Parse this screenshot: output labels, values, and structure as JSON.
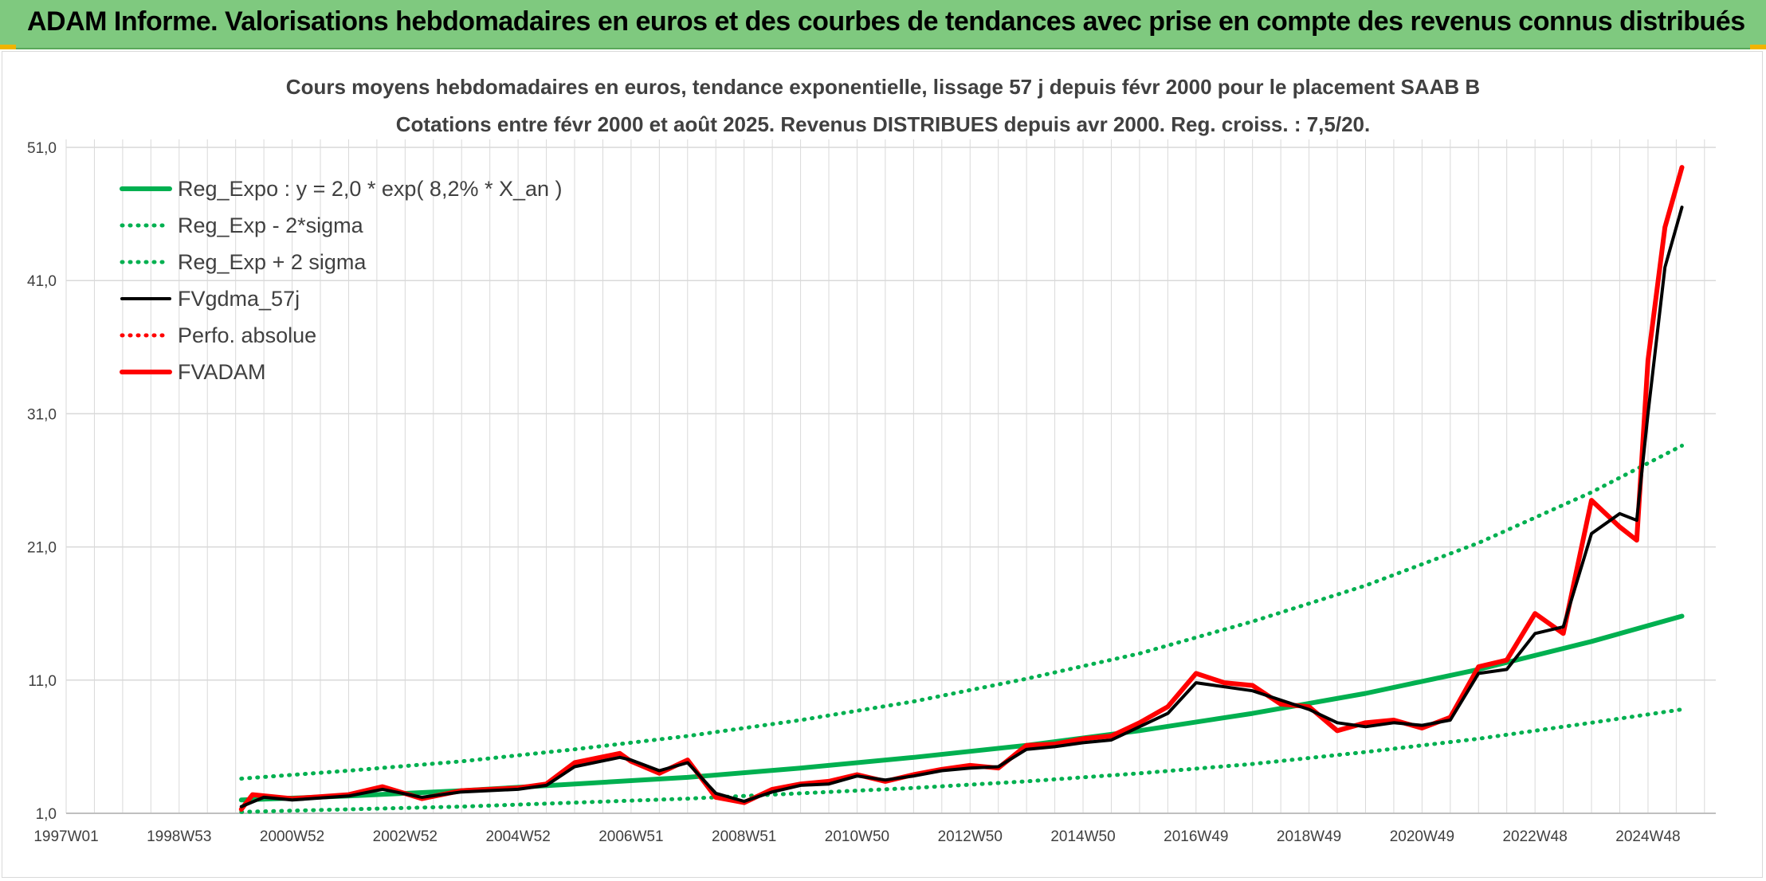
{
  "header": {
    "title": "ADAM Informe. Valorisations hebdomadaires en euros et des courbes de tendances avec prise en compte des revenus connus distribués"
  },
  "colors": {
    "header_bg": "#7fc97f",
    "regression": "#00b050",
    "smoothed": "#000000",
    "adam": "#ff0000",
    "grid": "#d9d9d9"
  },
  "chart_data": {
    "type": "line",
    "title": "Cours moyens hebdomadaires en euros, tendance exponentielle, lissage 57 j depuis févr 2000 pour le placement SAAB B",
    "subtitle": "Cotations entre févr 2000 et août 2025. Revenus DISTRIBUES depuis avr 2000. Reg. croiss. : 7,5/20.",
    "xlabel": "",
    "ylabel": "",
    "x_ticks": [
      "1997W01",
      "1998W53",
      "2000W52",
      "2002W52",
      "2004W52",
      "2006W51",
      "2008W51",
      "2010W50",
      "2012W50",
      "2014W50",
      "2016W49",
      "2018W49",
      "2020W49",
      "2022W48",
      "2024W48"
    ],
    "x_tick_years": [
      1997.0,
      1999.0,
      2001.0,
      2003.0,
      2005.0,
      2007.0,
      2009.0,
      2011.0,
      2013.0,
      2015.0,
      2017.0,
      2019.0,
      2021.0,
      2023.0,
      2025.0
    ],
    "xlim": [
      1997.0,
      2026.2
    ],
    "y_ticks": [
      "1,0",
      "11,0",
      "21,0",
      "31,0",
      "41,0",
      "51,0"
    ],
    "y_tick_values": [
      1,
      11,
      21,
      31,
      41,
      51
    ],
    "ylim": [
      1,
      51
    ],
    "grid": true,
    "legend_position": "top-left",
    "legend": [
      {
        "label": "Reg_Expo : y = 2,0 * exp( 8,2% *  X_an )",
        "color": "#00b050",
        "style": "solid",
        "width": 6
      },
      {
        "label": "Reg_Exp - 2*sigma",
        "color": "#00b050",
        "style": "dotted",
        "width": 4
      },
      {
        "label": "Reg_Exp + 2 sigma",
        "color": "#00b050",
        "style": "dotted",
        "width": 4
      },
      {
        "label": "FVgdma_57j",
        "color": "#000000",
        "style": "solid",
        "width": 4
      },
      {
        "label": "Perfo. absolue",
        "color": "#ff0000",
        "style": "dotted",
        "width": 3
      },
      {
        "label": "FVADAM",
        "color": "#ff0000",
        "style": "solid",
        "width": 6
      }
    ],
    "series": [
      {
        "name": "Reg_Expo : y = 2,0 * exp( 8,2% *  X_an )",
        "color": "#00b050",
        "style": "solid",
        "x": [
          2000.1,
          2002,
          2004,
          2006,
          2008,
          2010,
          2012,
          2014,
          2016,
          2018,
          2020,
          2022,
          2024,
          2025.6
        ],
        "y": [
          2.0,
          2.3,
          2.7,
          3.2,
          3.7,
          4.4,
          5.2,
          6.1,
          7.2,
          8.5,
          10.0,
          11.8,
          13.9,
          15.8
        ]
      },
      {
        "name": "Reg_Exp - 2*sigma",
        "color": "#00b050",
        "style": "dotted",
        "x": [
          2000.1,
          2002,
          2004,
          2006,
          2008,
          2010,
          2012,
          2014,
          2016,
          2018,
          2020,
          2022,
          2024,
          2025.6
        ],
        "y": [
          1.1,
          1.3,
          1.5,
          1.8,
          2.1,
          2.5,
          2.9,
          3.4,
          4.0,
          4.7,
          5.6,
          6.6,
          7.8,
          8.8
        ]
      },
      {
        "name": "Reg_Exp + 2 sigma",
        "color": "#00b050",
        "style": "dotted",
        "x": [
          2000.1,
          2002,
          2004,
          2006,
          2008,
          2010,
          2012,
          2014,
          2016,
          2018,
          2020,
          2022,
          2024,
          2025.6
        ],
        "y": [
          3.6,
          4.2,
          4.9,
          5.8,
          6.8,
          8.0,
          9.4,
          11.1,
          13.0,
          15.4,
          18.1,
          21.3,
          25.1,
          28.6
        ]
      },
      {
        "name": "FVgdma_57j",
        "color": "#000000",
        "style": "solid",
        "x": [
          2000.1,
          2000.5,
          2001,
          2002,
          2002.6,
          2003.3,
          2004,
          2005,
          2005.5,
          2006,
          2006.8,
          2007,
          2007.5,
          2008,
          2008.5,
          2009,
          2009.5,
          2010,
          2010.5,
          2011,
          2011.5,
          2012,
          2012.5,
          2013,
          2013.5,
          2014,
          2014.5,
          2015,
          2015.5,
          2016,
          2016.5,
          2017,
          2017.5,
          2018,
          2018.5,
          2019,
          2019.5,
          2020,
          2020.5,
          2021,
          2021.5,
          2022,
          2022.5,
          2023,
          2023.5,
          2024,
          2024.5,
          2024.8,
          2025,
          2025.3,
          2025.6
        ],
        "y": [
          1.5,
          2.2,
          2.0,
          2.3,
          2.8,
          2.2,
          2.6,
          2.8,
          3.1,
          4.5,
          5.2,
          5.0,
          4.2,
          4.8,
          2.5,
          1.9,
          2.6,
          3.1,
          3.2,
          3.8,
          3.5,
          3.8,
          4.2,
          4.4,
          4.5,
          5.8,
          6.0,
          6.3,
          6.5,
          7.5,
          8.5,
          10.8,
          10.5,
          10.2,
          9.5,
          8.8,
          7.8,
          7.5,
          7.8,
          7.6,
          8.0,
          11.5,
          11.8,
          14.5,
          15.0,
          22.0,
          23.5,
          23.0,
          31.0,
          42.0,
          46.5
        ]
      },
      {
        "name": "FVADAM",
        "color": "#ff0000",
        "style": "solid",
        "x": [
          2000.1,
          2000.3,
          2001,
          2002,
          2002.6,
          2003.3,
          2004,
          2005,
          2005.5,
          2006,
          2006.8,
          2007,
          2007.5,
          2008,
          2008.5,
          2009,
          2009.5,
          2010,
          2010.5,
          2011,
          2011.5,
          2012,
          2012.5,
          2013,
          2013.5,
          2014,
          2014.5,
          2015,
          2015.5,
          2016,
          2016.5,
          2017,
          2017.5,
          2018,
          2018.5,
          2019,
          2019.5,
          2020,
          2020.5,
          2021,
          2021.5,
          2022,
          2022.5,
          2023,
          2023.5,
          2024,
          2024.5,
          2024.8,
          2025,
          2025.3,
          2025.6
        ],
        "y": [
          1.3,
          2.4,
          2.1,
          2.4,
          3.0,
          2.1,
          2.7,
          2.9,
          3.2,
          4.8,
          5.5,
          4.9,
          4.0,
          5.0,
          2.2,
          1.8,
          2.8,
          3.2,
          3.4,
          3.9,
          3.4,
          3.9,
          4.3,
          4.6,
          4.4,
          6.1,
          6.2,
          6.6,
          6.8,
          7.8,
          9.0,
          11.5,
          10.8,
          10.6,
          9.2,
          9.0,
          7.2,
          7.8,
          8.0,
          7.4,
          8.2,
          12.0,
          12.5,
          16.0,
          14.5,
          24.5,
          22.5,
          21.5,
          35.0,
          45.0,
          49.5
        ]
      }
    ]
  }
}
